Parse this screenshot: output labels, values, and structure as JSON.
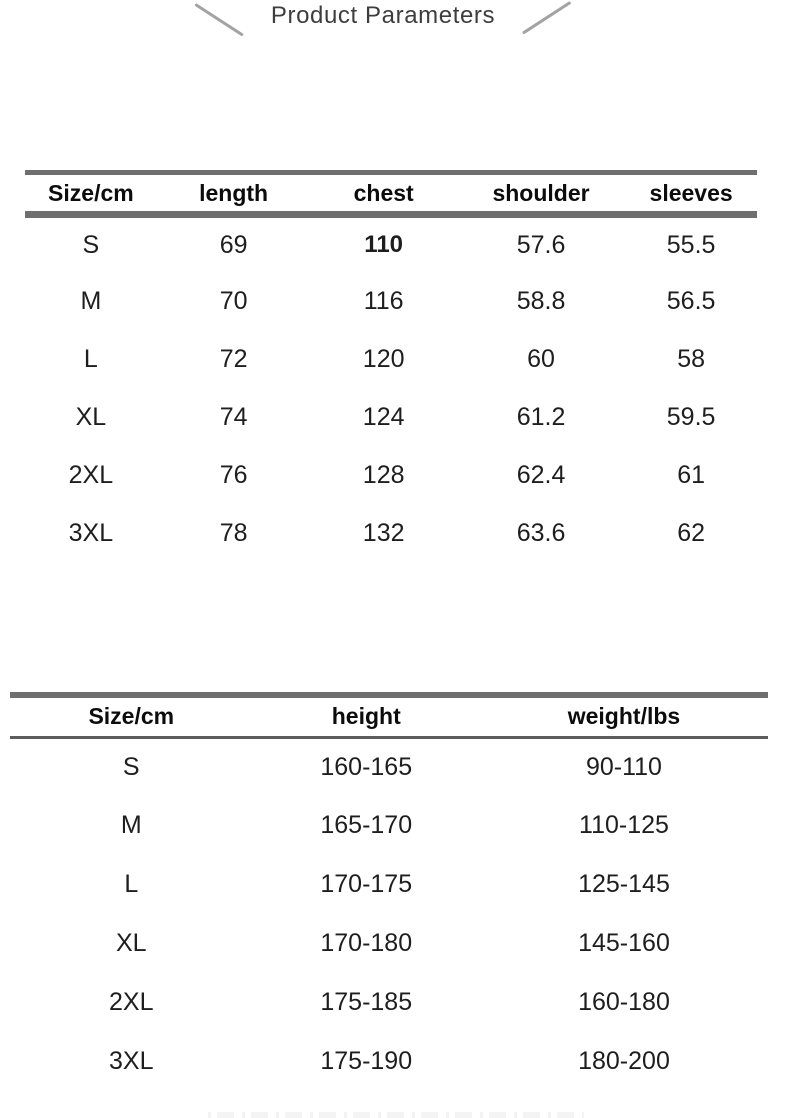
{
  "page": {
    "title": "Product Parameters"
  },
  "measurement_table": {
    "headers": [
      "Size/cm",
      "length",
      "chest",
      "shoulder",
      "sleeves"
    ],
    "rows": [
      [
        "S",
        "69",
        "110",
        "57.6",
        "55.5"
      ],
      [
        "M",
        "70",
        "116",
        "58.8",
        "56.5"
      ],
      [
        "L",
        "72",
        "120",
        "60",
        "58"
      ],
      [
        "XL",
        "74",
        "124",
        "61.2",
        "59.5"
      ],
      [
        "2XL",
        "76",
        "128",
        "62.4",
        "61"
      ],
      [
        "3XL",
        "78",
        "132",
        "63.6",
        "62"
      ]
    ],
    "emphasized_cell": {
      "row_index": 0,
      "column_index": 2
    }
  },
  "fit_table": {
    "headers": [
      "Size/cm",
      "height",
      "weight/lbs"
    ],
    "rows": [
      [
        "S",
        "160-165",
        "90-110"
      ],
      [
        "M",
        "165-170",
        "110-125"
      ],
      [
        "L",
        "170-175",
        "125-145"
      ],
      [
        "XL",
        "170-180",
        "145-160"
      ],
      [
        "2XL",
        "175-185",
        "160-180"
      ],
      [
        "3XL",
        "175-190",
        "180-200"
      ]
    ]
  },
  "colors": {
    "rule_gray": "#6f6f6f",
    "header_text": "#0c0c0c",
    "body_text": "#1e1e1e",
    "title_text": "#3d3d3d",
    "decoration_gray": "#a3a3a3"
  }
}
